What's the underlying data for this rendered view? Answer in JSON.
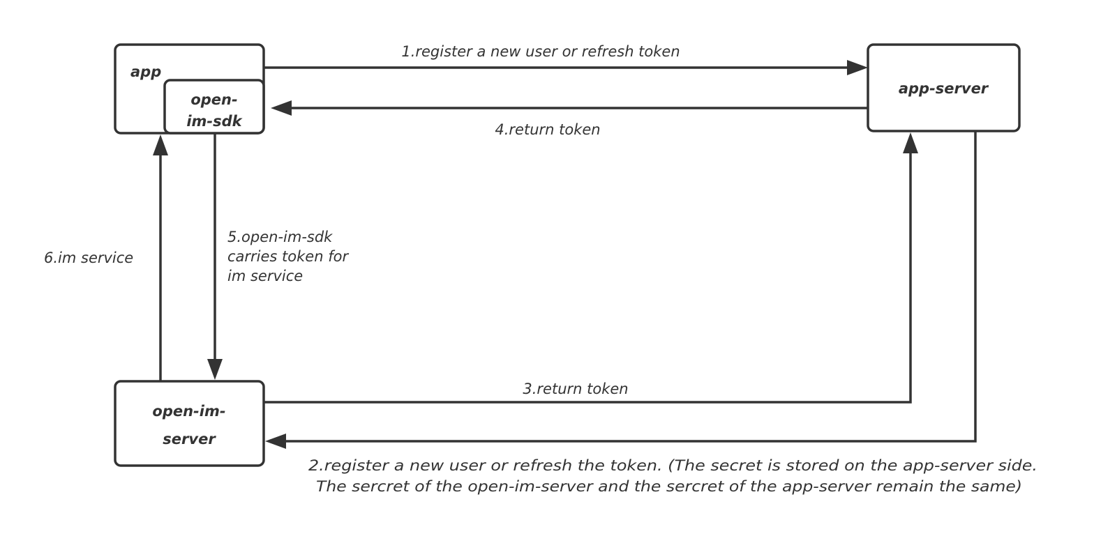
{
  "nodes": {
    "app": "app",
    "sdk_line1": "open-",
    "sdk_line2": "im-sdk",
    "app_server": "app-server",
    "im_server_line1": "open-im-",
    "im_server_line2": "server"
  },
  "edges": {
    "e1": "1.register a new user or refresh token",
    "e2_line1": "2.register a new user or refresh the token. (The secret is stored on the app-server side.",
    "e2_line2": "The sercret of the open-im-server and the sercret of the app-server remain the same)",
    "e3": "3.return token",
    "e4": "4.return token",
    "e5_line1": "5.open-im-sdk",
    "e5_line2": "carries token for",
    "e5_line3": "im service",
    "e6": "6.im service"
  },
  "colors": {
    "stroke": "#333333",
    "background": "#ffffff"
  }
}
